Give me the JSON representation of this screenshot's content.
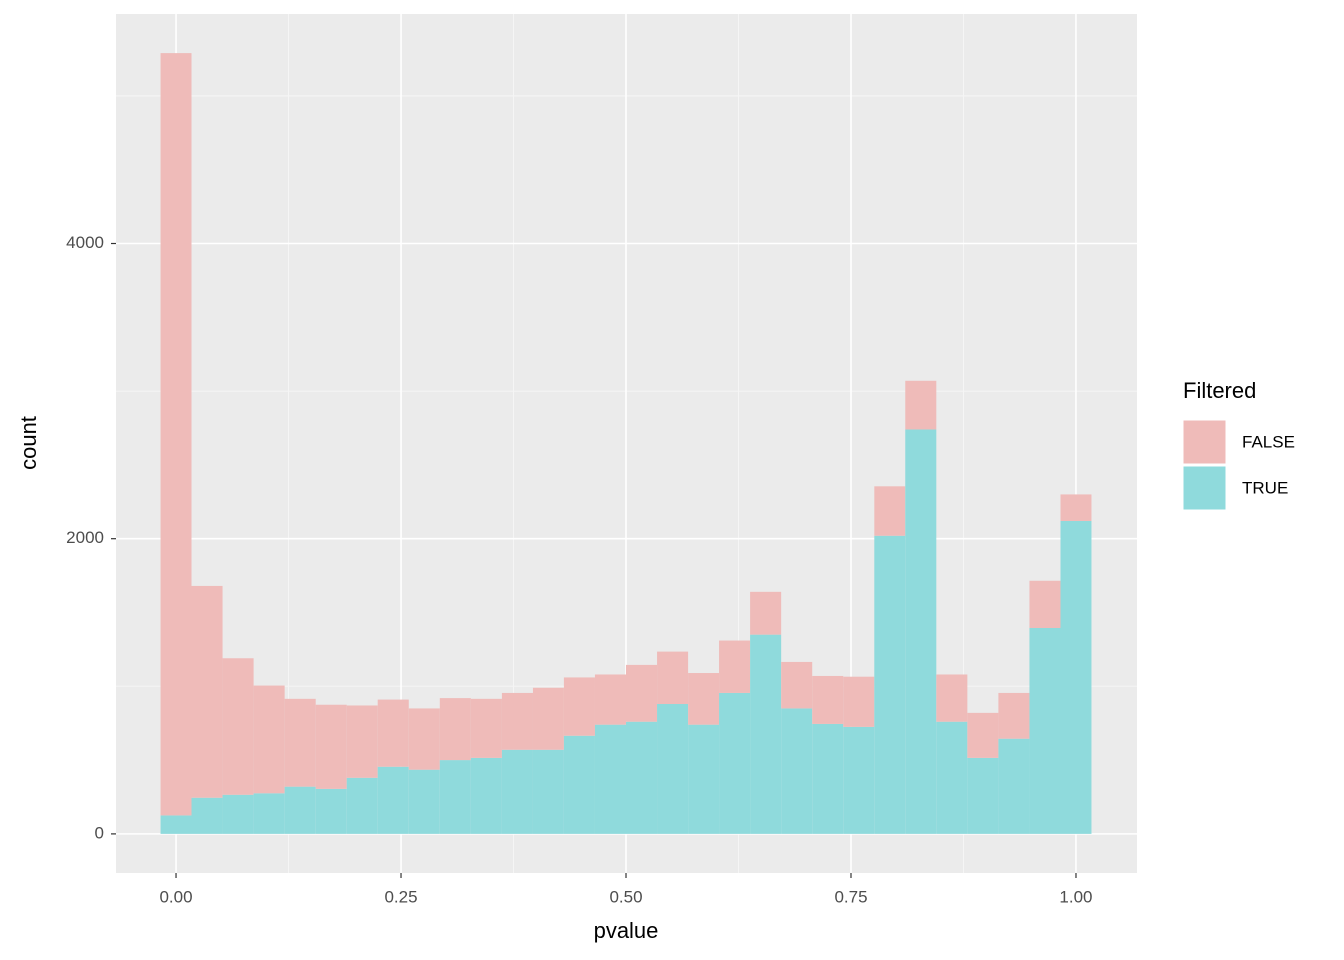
{
  "chart_data": {
    "type": "histogram",
    "stacked": true,
    "x_label": "pvalue",
    "y_label": "count",
    "legend_title": "Filtered",
    "legend_position": "right",
    "bins": [
      -0.0172,
      0.0172,
      0.0517,
      0.0862,
      0.1207,
      0.1552,
      0.1897,
      0.2241,
      0.2586,
      0.2931,
      0.3276,
      0.3621,
      0.3966,
      0.431,
      0.4655,
      0.5,
      0.5345,
      0.569,
      0.6034,
      0.6379,
      0.6724,
      0.7069,
      0.7414,
      0.7759,
      0.8103,
      0.8448,
      0.8793,
      0.9138,
      0.9483,
      0.9828,
      1.0172
    ],
    "series": [
      {
        "name": "FALSE",
        "color": "#efbbb9",
        "values": [
          5165,
          1435,
          925,
          730,
          595,
          570,
          490,
          455,
          415,
          420,
          400,
          385,
          420,
          395,
          340,
          385,
          355,
          350,
          355,
          290,
          315,
          325,
          340,
          335,
          330,
          320,
          305,
          310,
          320,
          180
        ]
      },
      {
        "name": "TRUE",
        "color": "#8fdadc",
        "values": [
          125,
          245,
          265,
          275,
          320,
          305,
          380,
          455,
          435,
          500,
          515,
          570,
          570,
          665,
          740,
          760,
          880,
          740,
          955,
          1350,
          850,
          745,
          725,
          2020,
          2740,
          760,
          515,
          645,
          1395,
          2120
        ]
      }
    ],
    "xlim": [
      -0.0667,
      1.0678
    ],
    "ylim": [
      -265,
      5555
    ],
    "xticks": [
      {
        "value": 0,
        "label": "0.00"
      },
      {
        "value": 0.25,
        "label": "0.25"
      },
      {
        "value": 0.5,
        "label": "0.50"
      },
      {
        "value": 0.75,
        "label": "0.75"
      },
      {
        "value": 1,
        "label": "1.00"
      }
    ],
    "yticks": [
      0,
      2000,
      4000
    ],
    "grid": true
  }
}
